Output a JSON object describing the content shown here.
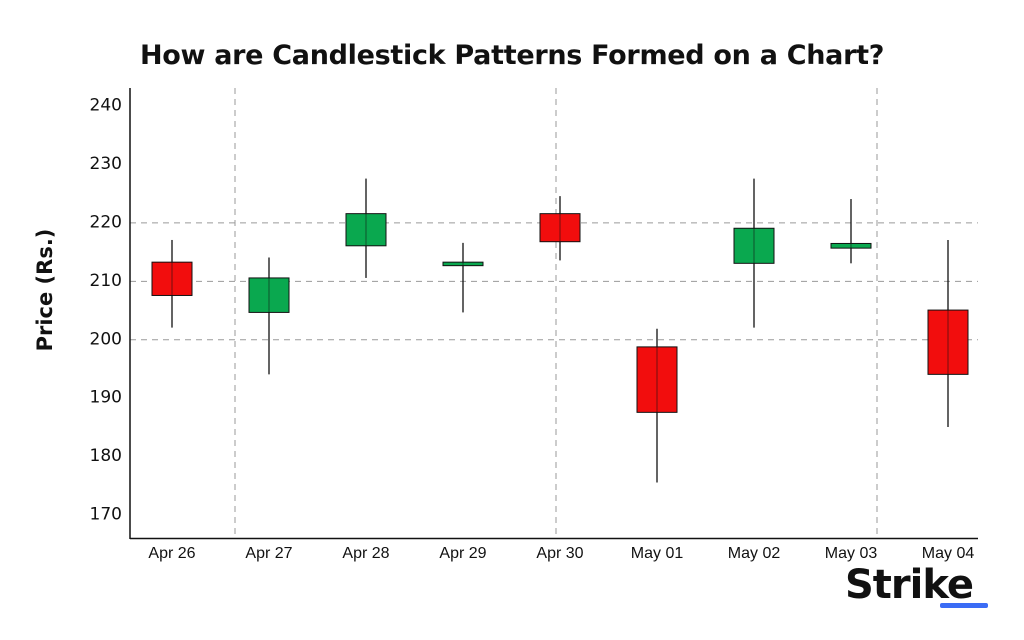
{
  "chart_data": {
    "type": "candlestick",
    "title": "How are Candlestick Patterns Formed on a Chart?",
    "xlabel": "",
    "ylabel": "Price (Rs.)",
    "ylim": [
      166,
      243
    ],
    "yticks": [
      170,
      180,
      190,
      200,
      210,
      220,
      230,
      240
    ],
    "x_tick_labels": [
      "Apr 26",
      "Apr 27",
      "Apr 28",
      "Apr 29",
      "Apr 30",
      "May 01",
      "May 02",
      "May 03",
      "May 04"
    ],
    "grid": "dashed",
    "candles": [
      {
        "open": 207.5,
        "close": 213.2,
        "high": 217.0,
        "low": 202.0,
        "color": "red"
      },
      {
        "open": 204.6,
        "close": 210.5,
        "high": 214.0,
        "low": 194.0,
        "color": "green"
      },
      {
        "open": 216.0,
        "close": 221.5,
        "high": 227.5,
        "low": 210.5,
        "color": "green"
      },
      {
        "open": 212.6,
        "close": 213.2,
        "high": 216.5,
        "low": 204.6,
        "color": "green"
      },
      {
        "open": 216.7,
        "close": 221.5,
        "high": 224.5,
        "low": 213.5,
        "color": "red"
      },
      {
        "open": 187.5,
        "close": 198.7,
        "high": 201.8,
        "low": 175.5,
        "color": "red"
      },
      {
        "open": 213.0,
        "close": 219.0,
        "high": 227.5,
        "low": 202.0,
        "color": "green"
      },
      {
        "open": 215.6,
        "close": 216.4,
        "high": 224.0,
        "low": 213.0,
        "color": "green"
      },
      {
        "open": 194.0,
        "close": 205.0,
        "high": 217.0,
        "low": 185.0,
        "color": "red"
      }
    ],
    "colors": {
      "up": "#0aa84f",
      "down": "#f20d0d"
    }
  },
  "brand": {
    "name": "Strike"
  }
}
